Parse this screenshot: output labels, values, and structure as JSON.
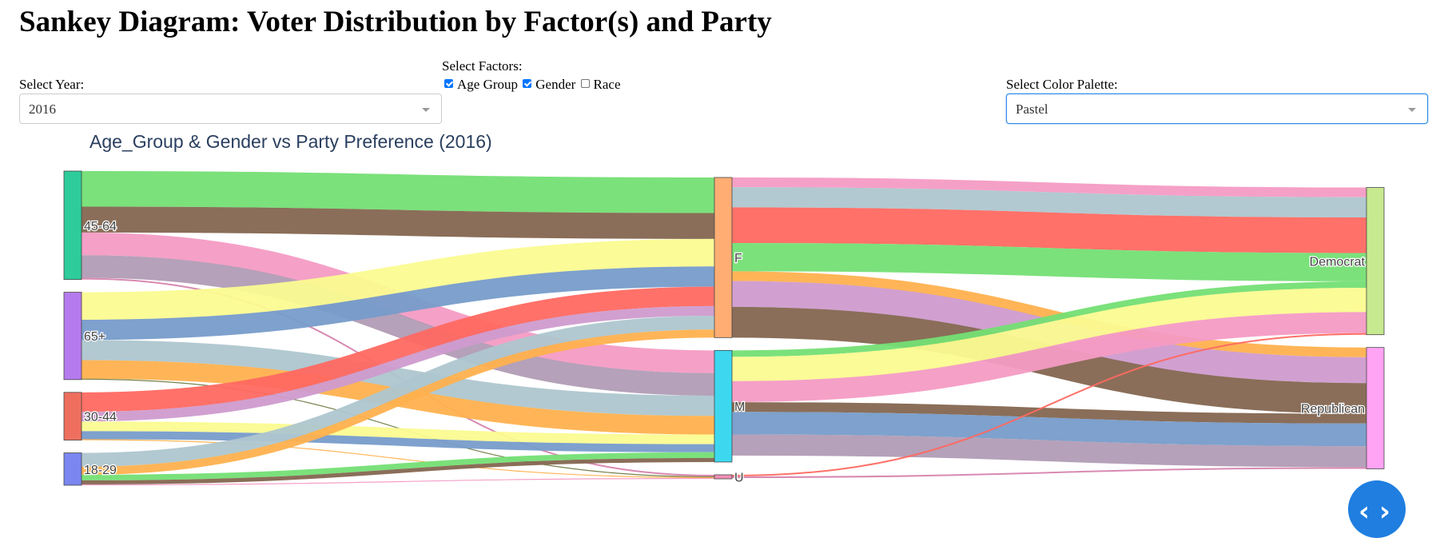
{
  "page": {
    "title": "Sankey Diagram: Voter Distribution by Factor(s) and Party"
  },
  "controls": {
    "year_label": "Select Year:",
    "year_value": "2016",
    "factors_label": "Select Factors:",
    "factors": [
      {
        "label": "Age Group",
        "checked": true
      },
      {
        "label": "Gender",
        "checked": true
      },
      {
        "label": "Race",
        "checked": false
      }
    ],
    "palette_label": "Select Color Palette:",
    "palette_value": "Pastel"
  },
  "toggle": {
    "glyph": "‹ ›",
    "icon": "code-toggle-icon"
  },
  "chart_data": {
    "type": "sankey",
    "title": "Age_Group & Gender vs Party Preference (2016)",
    "columns": [
      [
        "45-64",
        "65+",
        "30-44",
        "18-29"
      ],
      [
        "F",
        "M",
        "U"
      ],
      [
        "Democrat",
        "Republican"
      ]
    ],
    "nodes": [
      {
        "id": "45-64",
        "label": "45-64",
        "color": "#2ecc9a"
      },
      {
        "id": "65+",
        "label": "65+",
        "color": "#b57bee"
      },
      {
        "id": "30-44",
        "label": "30-44",
        "color": "#ef6f5e"
      },
      {
        "id": "18-29",
        "label": "18-29",
        "color": "#7b86f0"
      },
      {
        "id": "F",
        "label": "F",
        "color": "#ffad73"
      },
      {
        "id": "M",
        "label": "M",
        "color": "#3dd8f0"
      },
      {
        "id": "U",
        "label": "U",
        "color": "#f28fb6"
      },
      {
        "id": "Democrat",
        "label": "Democrat",
        "color": "#c7e98f"
      },
      {
        "id": "Republican",
        "label": "Republican",
        "color": "#ffa3f5"
      }
    ],
    "links": [
      {
        "source": "45-64",
        "target": "F",
        "value": 44,
        "color": "#74df74"
      },
      {
        "source": "45-64",
        "target": "F",
        "value": 32,
        "color": "#846650"
      },
      {
        "source": "45-64",
        "target": "M",
        "value": 28,
        "color": "#f49bc4"
      },
      {
        "source": "45-64",
        "target": "M",
        "value": 28,
        "color": "#b19cb5"
      },
      {
        "source": "45-64",
        "target": "U",
        "value": 2,
        "color": "#d684ae"
      },
      {
        "source": "65+",
        "target": "F",
        "value": 34,
        "color": "#fbfb91"
      },
      {
        "source": "65+",
        "target": "F",
        "value": 25,
        "color": "#779cca"
      },
      {
        "source": "65+",
        "target": "M",
        "value": 25,
        "color": "#aec6cf"
      },
      {
        "source": "65+",
        "target": "M",
        "value": 23,
        "color": "#ffb14e"
      },
      {
        "source": "65+",
        "target": "U",
        "value": 1,
        "color": "#6f7a42"
      },
      {
        "source": "30-44",
        "target": "F",
        "value": 24,
        "color": "#ff6961"
      },
      {
        "source": "30-44",
        "target": "F",
        "value": 12,
        "color": "#cf9bcd"
      },
      {
        "source": "30-44",
        "target": "M",
        "value": 12,
        "color": "#fbfb91"
      },
      {
        "source": "30-44",
        "target": "M",
        "value": 10,
        "color": "#779cca"
      },
      {
        "source": "30-44",
        "target": "U",
        "value": 1,
        "color": "#ffb14e"
      },
      {
        "source": "18-29",
        "target": "F",
        "value": 17,
        "color": "#aec6cf"
      },
      {
        "source": "18-29",
        "target": "F",
        "value": 10,
        "color": "#ffb14e"
      },
      {
        "source": "18-29",
        "target": "M",
        "value": 7,
        "color": "#74df74"
      },
      {
        "source": "18-29",
        "target": "M",
        "value": 5,
        "color": "#846650"
      },
      {
        "source": "18-29",
        "target": "U",
        "value": 1,
        "color": "#f49bc4"
      },
      {
        "source": "F",
        "target": "Democrat",
        "value": 12,
        "color": "#f49bc4"
      },
      {
        "source": "F",
        "target": "Democrat",
        "value": 25,
        "color": "#aec6cf"
      },
      {
        "source": "F",
        "target": "Democrat",
        "value": 44,
        "color": "#ff6961"
      },
      {
        "source": "F",
        "target": "Democrat",
        "value": 35,
        "color": "#74df74"
      },
      {
        "source": "F",
        "target": "Republican",
        "value": 12,
        "color": "#ffb14e"
      },
      {
        "source": "F",
        "target": "Republican",
        "value": 32,
        "color": "#cf9bcd"
      },
      {
        "source": "F",
        "target": "Republican",
        "value": 38,
        "color": "#846650"
      },
      {
        "source": "M",
        "target": "Democrat",
        "value": 8,
        "color": "#74df74"
      },
      {
        "source": "M",
        "target": "Democrat",
        "value": 30,
        "color": "#fbfb91"
      },
      {
        "source": "M",
        "target": "Democrat",
        "value": 26,
        "color": "#f49bc4"
      },
      {
        "source": "M",
        "target": "Republican",
        "value": 12,
        "color": "#846650"
      },
      {
        "source": "M",
        "target": "Republican",
        "value": 28,
        "color": "#779cca"
      },
      {
        "source": "M",
        "target": "Republican",
        "value": 26,
        "color": "#b19cb5"
      },
      {
        "source": "U",
        "target": "Democrat",
        "value": 2,
        "color": "#ff6961"
      },
      {
        "source": "U",
        "target": "Republican",
        "value": 2,
        "color": "#d684ae"
      }
    ]
  }
}
